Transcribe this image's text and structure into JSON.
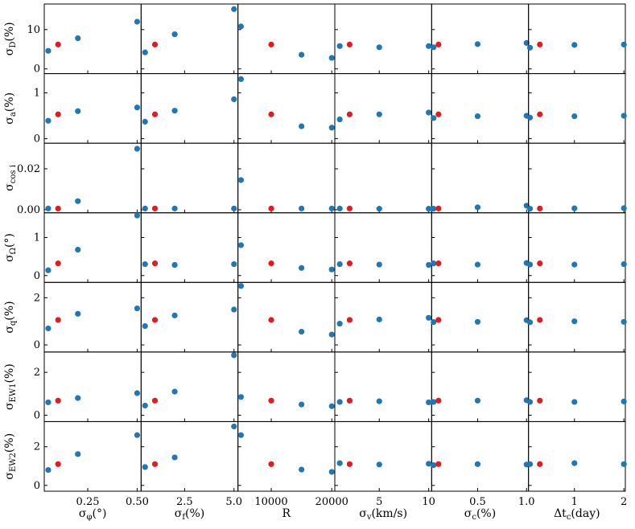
{
  "colors": {
    "fiducial": "#e41a1c",
    "varied": "#1f77b4",
    "axes": "#000000"
  },
  "chart_data": {
    "type": "scatter",
    "layout": "grid",
    "grid": false,
    "fiducial_point_color": "red",
    "columns": [
      {
        "xlabel": "σ_φ(°)",
        "xlim": [
          0.03,
          0.52
        ],
        "xticks": [
          0.25,
          0.5
        ],
        "xtick_labels": [
          "0.25",
          "0.50"
        ],
        "x": [
          0.05,
          0.1,
          0.2,
          0.5
        ],
        "fiducial_x": 0.1
      },
      {
        "xlabel": "σ_f(%)",
        "xlim": [
          0.3,
          5.2
        ],
        "xticks": [
          2.5,
          5.0
        ],
        "xtick_labels": [
          "2.5",
          "5.0"
        ],
        "x": [
          0.5,
          1.0,
          2.0,
          5.0
        ],
        "fiducial_x": 1.0
      },
      {
        "xlabel": "R",
        "xlim": [
          4500,
          20500
        ],
        "xticks": [
          10000,
          20000
        ],
        "xtick_labels": [
          "10000",
          "20000"
        ],
        "x": [
          5000,
          10000,
          15000,
          20000
        ],
        "fiducial_x": 10000
      },
      {
        "xlabel": "σ_v(km/s)",
        "xlim": [
          0.5,
          10.3
        ],
        "xticks": [
          5,
          10
        ],
        "xtick_labels": [
          "5",
          "10"
        ],
        "x": [
          1.0,
          2.0,
          5.0,
          10.0
        ],
        "fiducial_x": 2.0
      },
      {
        "xlabel": "σ_c(%)",
        "xlim": [
          0.03,
          1.02
        ],
        "xticks": [
          0.5,
          1.0
        ],
        "xtick_labels": [
          "0.5",
          "1.0"
        ],
        "x": [
          0.05,
          0.1,
          0.5,
          1.0
        ],
        "fiducial_x": 0.1
      },
      {
        "xlabel": "Δt_c(day)",
        "xlim": [
          0.07,
          2.03
        ],
        "xticks": [
          1,
          2
        ],
        "xtick_labels": [
          "1",
          "2"
        ],
        "x": [
          0.1,
          0.3,
          1.0,
          2.0
        ],
        "fiducial_x": 0.3
      }
    ],
    "rows": [
      {
        "ylabel": "σ_D(%)",
        "ylim": [
          -1.2,
          16.5
        ],
        "yticks": [
          0,
          10
        ],
        "ytick_labels": [
          "0",
          "10"
        ],
        "values": [
          [
            4.6,
            6.2,
            7.8,
            12.0
          ],
          [
            4.2,
            6.2,
            8.8,
            15.2
          ],
          [
            10.8,
            6.2,
            3.6,
            2.8
          ],
          [
            5.8,
            6.2,
            5.5,
            5.8
          ],
          [
            5.5,
            6.2,
            6.3,
            6.6
          ],
          [
            5.4,
            6.2,
            6.1,
            6.2
          ]
        ]
      },
      {
        "ylabel": "σ_a(%)",
        "ylim": [
          -0.1,
          1.42
        ],
        "yticks": [
          0,
          1
        ],
        "ytick_labels": [
          "0",
          "1"
        ],
        "values": [
          [
            0.39,
            0.53,
            0.6,
            0.68
          ],
          [
            0.37,
            0.53,
            0.61,
            0.86
          ],
          [
            1.3,
            0.53,
            0.27,
            0.24
          ],
          [
            0.42,
            0.53,
            0.53,
            0.57
          ],
          [
            0.45,
            0.53,
            0.49,
            0.5
          ],
          [
            0.46,
            0.53,
            0.49,
            0.5
          ]
        ]
      },
      {
        "ylabel": "σ_cos i",
        "ylim": [
          -0.0015,
          0.0325
        ],
        "yticks": [
          0.0,
          0.02
        ],
        "ytick_labels": [
          "0.00",
          "0.02"
        ],
        "values": [
          [
            0.0006,
            0.0006,
            0.0042,
            0.0298
          ],
          [
            0.0006,
            0.0006,
            0.0006,
            0.0006
          ],
          [
            0.0145,
            0.0006,
            0.0006,
            0.0006
          ],
          [
            0.0006,
            0.0006,
            0.0005,
            0.0005
          ],
          [
            0.0005,
            0.0006,
            0.0012,
            0.002
          ],
          [
            0.0005,
            0.0006,
            0.0007,
            0.0008
          ]
        ]
      },
      {
        "ylabel": "σ_Ω(°)",
        "ylim": [
          -0.18,
          1.65
        ],
        "yticks": [
          0,
          1
        ],
        "ytick_labels": [
          "0",
          "1"
        ],
        "values": [
          [
            0.14,
            0.32,
            0.68,
            1.58
          ],
          [
            0.3,
            0.32,
            0.28,
            0.3
          ],
          [
            0.8,
            0.32,
            0.2,
            0.16
          ],
          [
            0.3,
            0.32,
            0.29,
            0.28
          ],
          [
            0.32,
            0.32,
            0.29,
            0.33
          ],
          [
            0.29,
            0.32,
            0.29,
            0.3
          ]
        ]
      },
      {
        "ylabel": "σ_q(%)",
        "ylim": [
          -0.3,
          2.65
        ],
        "yticks": [
          0,
          2
        ],
        "ytick_labels": [
          "0",
          "2"
        ],
        "values": [
          [
            0.7,
            1.06,
            1.32,
            1.55
          ],
          [
            0.8,
            1.06,
            1.25,
            1.5
          ],
          [
            2.5,
            1.06,
            0.56,
            0.44
          ],
          [
            0.9,
            1.06,
            1.08,
            1.15
          ],
          [
            0.97,
            1.06,
            0.98,
            1.05
          ],
          [
            0.96,
            1.06,
            1.0,
            0.98
          ]
        ]
      },
      {
        "ylabel": "σ_EW1(%)",
        "ylim": [
          -0.3,
          2.95
        ],
        "yticks": [
          0,
          2
        ],
        "ytick_labels": [
          "0",
          "2"
        ],
        "values": [
          [
            0.6,
            0.68,
            0.8,
            1.03
          ],
          [
            0.45,
            0.68,
            1.1,
            2.8
          ],
          [
            0.85,
            0.68,
            0.5,
            0.42
          ],
          [
            0.62,
            0.68,
            0.65,
            0.6
          ],
          [
            0.62,
            0.68,
            0.68,
            0.7
          ],
          [
            0.62,
            0.68,
            0.62,
            0.64
          ]
        ]
      },
      {
        "ylabel": "σ_EW2(%)",
        "ylim": [
          -0.3,
          3.3
        ],
        "yticks": [
          0,
          2
        ],
        "ytick_labels": [
          "0",
          "2"
        ],
        "values": [
          [
            0.8,
            1.1,
            1.62,
            2.6
          ],
          [
            0.95,
            1.1,
            1.45,
            3.05
          ],
          [
            2.6,
            1.1,
            0.82,
            0.7
          ],
          [
            1.15,
            1.1,
            1.08,
            1.12
          ],
          [
            1.05,
            1.1,
            1.1,
            1.08
          ],
          [
            1.1,
            1.1,
            1.15,
            1.1
          ]
        ]
      }
    ]
  }
}
